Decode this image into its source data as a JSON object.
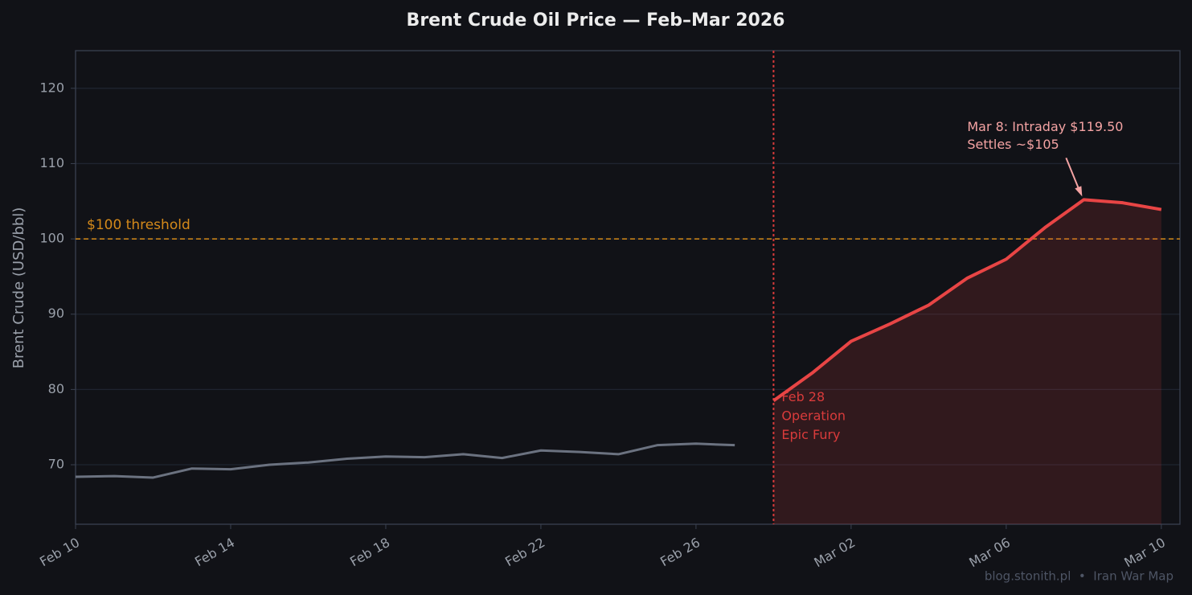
{
  "chart_data": {
    "type": "line",
    "title": "Brent Crude Oil Price — Feb–Mar 2026",
    "y_label": "Brent Crude (USD/bbl)",
    "categories": [
      "Feb 10",
      null,
      null,
      null,
      "Feb 14",
      null,
      null,
      null,
      "Feb 18",
      null,
      null,
      null,
      "Feb 22",
      null,
      null,
      null,
      "Feb 26",
      null,
      null,
      null,
      "Mar 02",
      null,
      null,
      null,
      "Mar 06",
      null,
      null,
      null,
      "Mar 10"
    ],
    "series": [
      {
        "color": "#6b7280",
        "values": [
          68.4,
          68.5,
          68.3,
          69.5,
          69.4,
          70.0,
          70.3,
          70.8,
          71.1,
          71.0,
          71.4,
          70.9,
          71.9,
          71.7,
          71.4,
          72.6,
          72.8,
          72.6,
          null,
          null,
          null,
          null,
          null,
          null,
          null,
          null,
          null,
          null,
          null
        ]
      },
      {
        "color": "#e84545",
        "fill": true,
        "values": [
          null,
          null,
          null,
          null,
          null,
          null,
          null,
          null,
          null,
          null,
          null,
          null,
          null,
          null,
          null,
          null,
          null,
          null,
          78.5,
          82.2,
          86.4,
          88.7,
          91.2,
          94.8,
          97.3,
          101.5,
          105.2,
          104.8,
          103.9
        ]
      }
    ],
    "ylim": [
      62.1,
      125
    ],
    "yticks": [
      70,
      80,
      90,
      100,
      110,
      120
    ],
    "grid": true,
    "threshold": {
      "value": 100,
      "label": "$100 threshold",
      "color": "#d4891a"
    },
    "event": {
      "lines": [
        "Feb 28",
        "Operation",
        "Epic Fury"
      ],
      "color": "#d63a3a"
    },
    "annotation": {
      "lines": [
        "Mar 8: Intraday $119.50",
        "Settles ~$105"
      ],
      "color": "#f4a3a3"
    },
    "footer": "blog.stonith.pl  •  Iran War Map"
  }
}
